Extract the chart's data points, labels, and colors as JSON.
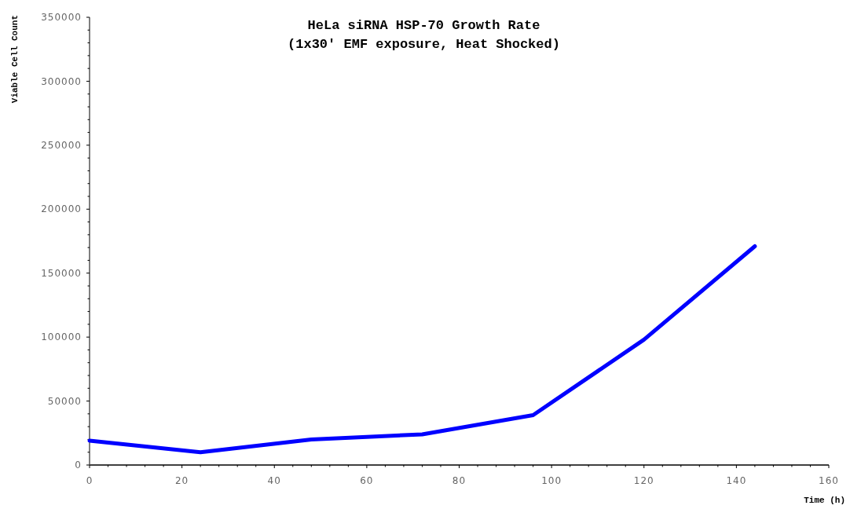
{
  "chart_data": {
    "type": "line",
    "title": "HeLa siRNA HSP-70 Growth Rate\n(1x30' EMF exposure, Heat Shocked)",
    "xlabel": "Time (h)",
    "ylabel": "Viable Cell Count",
    "x": [
      0,
      24,
      48,
      72,
      96,
      120,
      144
    ],
    "series": [
      {
        "color": "#0000ff",
        "values": [
          19000,
          10000,
          20000,
          24000,
          39000,
          98000,
          171000
        ]
      }
    ],
    "xlim": [
      0,
      160
    ],
    "xticks": [
      0,
      {
        "value": 4,
        "label": null
      },
      {
        "value": 8,
        "label": null
      },
      {
        "value": 12,
        "label": null
      },
      {
        "value": 16,
        "label": null
      },
      20,
      {
        "value": 24,
        "label": null
      },
      {
        "value": 28,
        "label": null
      },
      {
        "value": 32,
        "label": null
      },
      {
        "value": 36,
        "label": null
      },
      40,
      {
        "value": 44,
        "label": null
      },
      {
        "value": 48,
        "label": null
      },
      {
        "value": 52,
        "label": null
      },
      {
        "value": 56,
        "label": null
      },
      60,
      {
        "value": 64,
        "label": null
      },
      {
        "value": 68,
        "label": null
      },
      {
        "value": 72,
        "label": null
      },
      {
        "value": 76,
        "label": null
      },
      80,
      {
        "value": 84,
        "label": null
      },
      {
        "value": 88,
        "label": null
      },
      {
        "value": 92,
        "label": null
      },
      {
        "value": 96,
        "label": null
      },
      100,
      {
        "value": 104,
        "label": null
      },
      {
        "value": 108,
        "label": null
      },
      {
        "value": 112,
        "label": null
      },
      {
        "value": 116,
        "label": null
      },
      120,
      {
        "value": 124,
        "label": null
      },
      {
        "value": 128,
        "label": null
      },
      {
        "value": 132,
        "label": null
      },
      {
        "value": 136,
        "label": null
      },
      140,
      {
        "value": 144,
        "label": null
      },
      {
        "value": 148,
        "label": null
      },
      {
        "value": 152,
        "label": null
      },
      {
        "value": 156,
        "label": null
      },
      160
    ],
    "ylim": [
      0,
      350000
    ],
    "yticks": [
      0,
      {
        "value": 10000,
        "label": null
      },
      {
        "value": 20000,
        "label": null
      },
      {
        "value": 30000,
        "label": null
      },
      {
        "value": 40000,
        "label": null
      },
      50000,
      {
        "value": 60000,
        "label": null
      },
      {
        "value": 70000,
        "label": null
      },
      {
        "value": 80000,
        "label": null
      },
      {
        "value": 90000,
        "label": null
      },
      100000,
      {
        "value": 110000,
        "label": null
      },
      {
        "value": 120000,
        "label": null
      },
      {
        "value": 130000,
        "label": null
      },
      {
        "value": 140000,
        "label": null
      },
      150000,
      {
        "value": 160000,
        "label": null
      },
      {
        "value": 170000,
        "label": null
      },
      {
        "value": 180000,
        "label": null
      },
      {
        "value": 190000,
        "label": null
      },
      200000,
      {
        "value": 210000,
        "label": null
      },
      {
        "value": 220000,
        "label": null
      },
      {
        "value": 230000,
        "label": null
      },
      {
        "value": 240000,
        "label": null
      },
      250000,
      {
        "value": 260000,
        "label": null
      },
      {
        "value": 270000,
        "label": null
      },
      {
        "value": 280000,
        "label": null
      },
      {
        "value": 290000,
        "label": null
      },
      300000,
      {
        "value": 310000,
        "label": null
      },
      {
        "value": 320000,
        "label": null
      },
      {
        "value": 330000,
        "label": null
      },
      {
        "value": 340000,
        "label": null
      },
      350000
    ],
    "grid": false,
    "line_style": "solid"
  }
}
